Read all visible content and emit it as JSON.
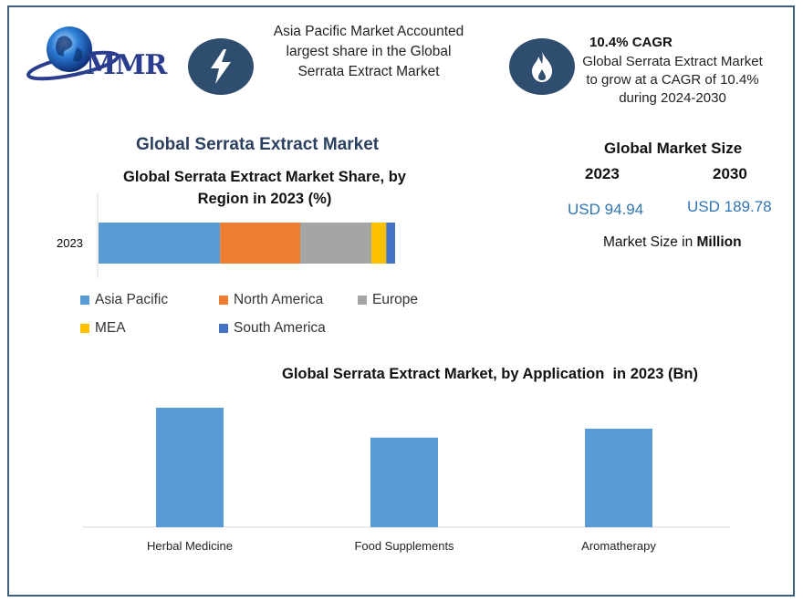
{
  "logo": {
    "text": "MMR"
  },
  "highlights": {
    "region_text": "Asia Pacific Market Accounted largest share in the Global Serrata Extract Market",
    "cagr_title": "10.4% CAGR",
    "cagr_text": "Global Serrata Extract Market to grow at a CAGR of 10.4% during 2024-2030"
  },
  "main_title": "Global Serrata Extract Market",
  "market_size": {
    "title": "Global Market Size",
    "year_a": "2023",
    "year_b": "2030",
    "value_a": "USD 94.94",
    "value_b": "USD 189.78",
    "unit_label": "Market Size in ",
    "unit_bold": "Million"
  },
  "colors": {
    "asia_pacific": "#5b9bd5",
    "north_america": "#ed7d31",
    "europe": "#a5a5a5",
    "mea": "#ffc000",
    "south_america": "#4472c4",
    "app_bar": "#5b9bd5",
    "usd_blue": "#2e75b6",
    "icon_bg": "#2f4d6f",
    "frame": "#3f5f7f"
  },
  "chart_data": [
    {
      "type": "bar",
      "orientation": "horizontal-stacked",
      "title": "Global Serrata Extract Market Share, by Region in 2023 (%)",
      "categories": [
        "2023"
      ],
      "series": [
        {
          "name": "Asia Pacific",
          "values": [
            41
          ]
        },
        {
          "name": "North America",
          "values": [
            27
          ]
        },
        {
          "name": "Europe",
          "values": [
            24
          ]
        },
        {
          "name": "MEA",
          "values": [
            5
          ]
        },
        {
          "name": "South America",
          "values": [
            3
          ]
        }
      ],
      "xlim": [
        0,
        100
      ],
      "legend": "bottom"
    },
    {
      "type": "bar",
      "title": "Global Serrata Extract Market, by Application  in 2023 (Bn)",
      "categories": [
        "Herbal Medicine",
        "Food Supplements",
        "Aromatherapy"
      ],
      "values": [
        40,
        30,
        33
      ],
      "ylim": [
        0,
        40
      ]
    }
  ]
}
